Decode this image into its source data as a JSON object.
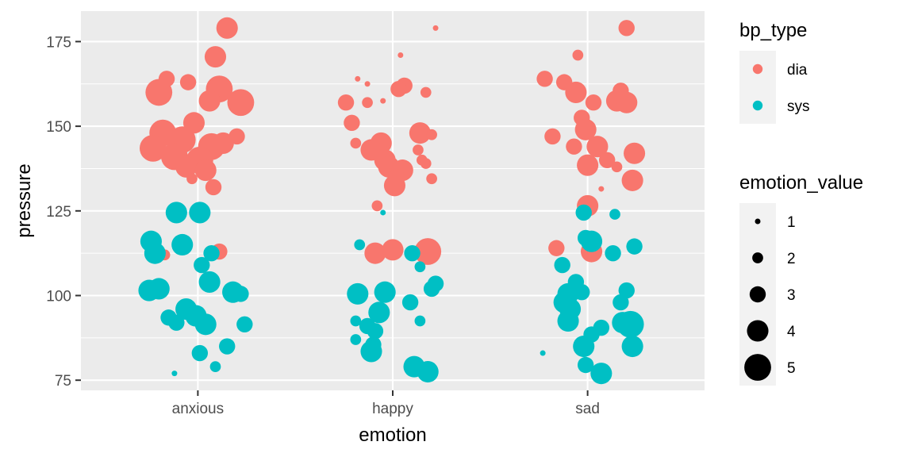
{
  "chart_data": {
    "type": "scatter",
    "subtype": "jitter-bubble",
    "title": "",
    "xlabel": "emotion",
    "ylabel": "pressure",
    "categories": [
      "anxious",
      "happy",
      "sad"
    ],
    "ylim": [
      72,
      184
    ],
    "yticks": [
      75,
      100,
      125,
      150,
      175
    ],
    "grid": true,
    "legend_placement": "right",
    "color_legend": {
      "title": "bp_type",
      "entries": [
        {
          "label": "dia",
          "color": "#F8766D"
        },
        {
          "label": "sys",
          "color": "#00BFC4"
        }
      ]
    },
    "size_legend": {
      "title": "emotion_value",
      "entries": [
        {
          "label": "1",
          "value": 1
        },
        {
          "label": "2",
          "value": 2
        },
        {
          "label": "3",
          "value": 3
        },
        {
          "label": "4",
          "value": 4
        },
        {
          "label": "5",
          "value": 5
        }
      ]
    },
    "series": [
      {
        "name": "dia",
        "color": "#F8766D",
        "points": [
          {
            "x": "anxious",
            "jitter": 0.15,
            "y": 179,
            "size": 4
          },
          {
            "x": "anxious",
            "jitter": 0.09,
            "y": 170.5,
            "size": 4
          },
          {
            "x": "anxious",
            "jitter": -0.16,
            "y": 164,
            "size": 3
          },
          {
            "x": "anxious",
            "jitter": -0.05,
            "y": 163,
            "size": 3
          },
          {
            "x": "anxious",
            "jitter": -0.2,
            "y": 160,
            "size": 5
          },
          {
            "x": "anxious",
            "jitter": 0.11,
            "y": 161,
            "size": 5
          },
          {
            "x": "anxious",
            "jitter": 0.06,
            "y": 157.5,
            "size": 4
          },
          {
            "x": "anxious",
            "jitter": 0.22,
            "y": 157,
            "size": 5
          },
          {
            "x": "anxious",
            "jitter": -0.02,
            "y": 151,
            "size": 4
          },
          {
            "x": "anxious",
            "jitter": -0.18,
            "y": 148,
            "size": 5
          },
          {
            "x": "anxious",
            "jitter": 0.2,
            "y": 147,
            "size": 3
          },
          {
            "x": "anxious",
            "jitter": -0.23,
            "y": 143.5,
            "size": 5
          },
          {
            "x": "anxious",
            "jitter": -0.08,
            "y": 146,
            "size": 5
          },
          {
            "x": "anxious",
            "jitter": 0.07,
            "y": 144,
            "size": 5
          },
          {
            "x": "anxious",
            "jitter": 0.13,
            "y": 145,
            "size": 4
          },
          {
            "x": "anxious",
            "jitter": -0.12,
            "y": 141,
            "size": 5
          },
          {
            "x": "anxious",
            "jitter": 0.01,
            "y": 140,
            "size": 5
          },
          {
            "x": "anxious",
            "jitter": -0.06,
            "y": 138,
            "size": 4
          },
          {
            "x": "anxious",
            "jitter": 0.04,
            "y": 137,
            "size": 4
          },
          {
            "x": "anxious",
            "jitter": -0.03,
            "y": 134.5,
            "size": 2
          },
          {
            "x": "anxious",
            "jitter": 0.08,
            "y": 132,
            "size": 3
          },
          {
            "x": "anxious",
            "jitter": -0.09,
            "y": 126,
            "size": 1
          },
          {
            "x": "anxious",
            "jitter": -0.17,
            "y": 112,
            "size": 2
          },
          {
            "x": "anxious",
            "jitter": 0.11,
            "y": 113,
            "size": 3
          },
          {
            "x": "happy",
            "jitter": -0.18,
            "y": 164,
            "size": 1
          },
          {
            "x": "happy",
            "jitter": -0.13,
            "y": 162.5,
            "size": 1
          },
          {
            "x": "happy",
            "jitter": 0.04,
            "y": 171,
            "size": 1
          },
          {
            "x": "happy",
            "jitter": 0.22,
            "y": 179,
            "size": 1
          },
          {
            "x": "happy",
            "jitter": 0.06,
            "y": 162,
            "size": 3
          },
          {
            "x": "happy",
            "jitter": 0.03,
            "y": 161,
            "size": 3
          },
          {
            "x": "happy",
            "jitter": 0.17,
            "y": 160,
            "size": 2
          },
          {
            "x": "happy",
            "jitter": -0.24,
            "y": 157,
            "size": 3
          },
          {
            "x": "happy",
            "jitter": -0.13,
            "y": 157,
            "size": 2
          },
          {
            "x": "happy",
            "jitter": -0.05,
            "y": 157.5,
            "size": 1
          },
          {
            "x": "happy",
            "jitter": -0.21,
            "y": 151,
            "size": 3
          },
          {
            "x": "happy",
            "jitter": 0.14,
            "y": 148,
            "size": 4
          },
          {
            "x": "happy",
            "jitter": 0.2,
            "y": 147.5,
            "size": 2
          },
          {
            "x": "happy",
            "jitter": -0.19,
            "y": 145,
            "size": 2
          },
          {
            "x": "happy",
            "jitter": -0.06,
            "y": 145,
            "size": 4
          },
          {
            "x": "happy",
            "jitter": -0.11,
            "y": 143,
            "size": 4
          },
          {
            "x": "happy",
            "jitter": 0.13,
            "y": 143,
            "size": 2
          },
          {
            "x": "happy",
            "jitter": 0.15,
            "y": 140,
            "size": 2
          },
          {
            "x": "happy",
            "jitter": -0.04,
            "y": 140,
            "size": 4
          },
          {
            "x": "happy",
            "jitter": -0.02,
            "y": 138,
            "size": 4
          },
          {
            "x": "happy",
            "jitter": 0.05,
            "y": 137,
            "size": 4
          },
          {
            "x": "happy",
            "jitter": 0.02,
            "y": 135,
            "size": 3
          },
          {
            "x": "happy",
            "jitter": 0.17,
            "y": 139,
            "size": 2
          },
          {
            "x": "happy",
            "jitter": 0.2,
            "y": 134.5,
            "size": 2
          },
          {
            "x": "happy",
            "jitter": 0.01,
            "y": 132.5,
            "size": 4
          },
          {
            "x": "happy",
            "jitter": -0.08,
            "y": 126.5,
            "size": 2
          },
          {
            "x": "happy",
            "jitter": -0.09,
            "y": 112.5,
            "size": 4
          },
          {
            "x": "happy",
            "jitter": 0.0,
            "y": 113.5,
            "size": 4
          },
          {
            "x": "happy",
            "jitter": 0.18,
            "y": 113,
            "size": 5
          },
          {
            "x": "sad",
            "jitter": -0.22,
            "y": 164,
            "size": 3
          },
          {
            "x": "sad",
            "jitter": -0.12,
            "y": 163,
            "size": 3
          },
          {
            "x": "sad",
            "jitter": -0.06,
            "y": 160,
            "size": 4
          },
          {
            "x": "sad",
            "jitter": -0.05,
            "y": 171,
            "size": 2
          },
          {
            "x": "sad",
            "jitter": 0.2,
            "y": 179,
            "size": 3
          },
          {
            "x": "sad",
            "jitter": 0.17,
            "y": 160.5,
            "size": 3
          },
          {
            "x": "sad",
            "jitter": 0.15,
            "y": 157.5,
            "size": 4
          },
          {
            "x": "sad",
            "jitter": 0.2,
            "y": 157,
            "size": 4
          },
          {
            "x": "sad",
            "jitter": 0.03,
            "y": 157,
            "size": 3
          },
          {
            "x": "sad",
            "jitter": -0.03,
            "y": 152.5,
            "size": 3
          },
          {
            "x": "sad",
            "jitter": -0.01,
            "y": 149,
            "size": 4
          },
          {
            "x": "sad",
            "jitter": -0.18,
            "y": 147,
            "size": 3
          },
          {
            "x": "sad",
            "jitter": 0.05,
            "y": 144,
            "size": 4
          },
          {
            "x": "sad",
            "jitter": -0.07,
            "y": 144,
            "size": 3
          },
          {
            "x": "sad",
            "jitter": 0.24,
            "y": 142,
            "size": 4
          },
          {
            "x": "sad",
            "jitter": 0.1,
            "y": 140,
            "size": 3
          },
          {
            "x": "sad",
            "jitter": 0.0,
            "y": 138.5,
            "size": 4
          },
          {
            "x": "sad",
            "jitter": 0.15,
            "y": 138,
            "size": 2
          },
          {
            "x": "sad",
            "jitter": 0.23,
            "y": 134,
            "size": 4
          },
          {
            "x": "sad",
            "jitter": 0.07,
            "y": 131.5,
            "size": 1
          },
          {
            "x": "sad",
            "jitter": 0.0,
            "y": 126.5,
            "size": 4
          },
          {
            "x": "sad",
            "jitter": -0.16,
            "y": 114,
            "size": 3
          },
          {
            "x": "sad",
            "jitter": 0.02,
            "y": 113,
            "size": 4
          }
        ]
      },
      {
        "name": "sys",
        "color": "#00BFC4",
        "points": [
          {
            "x": "anxious",
            "jitter": -0.11,
            "y": 124.5,
            "size": 4
          },
          {
            "x": "anxious",
            "jitter": 0.01,
            "y": 124.5,
            "size": 4
          },
          {
            "x": "anxious",
            "jitter": -0.24,
            "y": 116,
            "size": 4
          },
          {
            "x": "anxious",
            "jitter": -0.08,
            "y": 115,
            "size": 4
          },
          {
            "x": "anxious",
            "jitter": -0.22,
            "y": 112.5,
            "size": 4
          },
          {
            "x": "anxious",
            "jitter": 0.07,
            "y": 112.5,
            "size": 3
          },
          {
            "x": "anxious",
            "jitter": 0.02,
            "y": 109,
            "size": 3
          },
          {
            "x": "anxious",
            "jitter": 0.06,
            "y": 104,
            "size": 4
          },
          {
            "x": "anxious",
            "jitter": -0.2,
            "y": 102,
            "size": 4
          },
          {
            "x": "anxious",
            "jitter": -0.25,
            "y": 101.5,
            "size": 4
          },
          {
            "x": "anxious",
            "jitter": 0.18,
            "y": 101,
            "size": 4
          },
          {
            "x": "anxious",
            "jitter": 0.22,
            "y": 100.5,
            "size": 3
          },
          {
            "x": "anxious",
            "jitter": -0.06,
            "y": 96,
            "size": 4
          },
          {
            "x": "anxious",
            "jitter": -0.01,
            "y": 94,
            "size": 4
          },
          {
            "x": "anxious",
            "jitter": -0.15,
            "y": 93.5,
            "size": 3
          },
          {
            "x": "anxious",
            "jitter": -0.11,
            "y": 92,
            "size": 3
          },
          {
            "x": "anxious",
            "jitter": 0.04,
            "y": 91.5,
            "size": 4
          },
          {
            "x": "anxious",
            "jitter": 0.24,
            "y": 91.5,
            "size": 3
          },
          {
            "x": "anxious",
            "jitter": 0.01,
            "y": 83,
            "size": 3
          },
          {
            "x": "anxious",
            "jitter": 0.15,
            "y": 85,
            "size": 3
          },
          {
            "x": "anxious",
            "jitter": 0.09,
            "y": 79,
            "size": 2
          },
          {
            "x": "anxious",
            "jitter": -0.12,
            "y": 77,
            "size": 1
          },
          {
            "x": "happy",
            "jitter": -0.17,
            "y": 115,
            "size": 2
          },
          {
            "x": "happy",
            "jitter": 0.1,
            "y": 112.5,
            "size": 3
          },
          {
            "x": "happy",
            "jitter": 0.14,
            "y": 108.5,
            "size": 2
          },
          {
            "x": "happy",
            "jitter": -0.05,
            "y": 124.5,
            "size": 1
          },
          {
            "x": "happy",
            "jitter": 0.22,
            "y": 103.5,
            "size": 3
          },
          {
            "x": "happy",
            "jitter": 0.2,
            "y": 102,
            "size": 3
          },
          {
            "x": "happy",
            "jitter": -0.18,
            "y": 100.5,
            "size": 4
          },
          {
            "x": "happy",
            "jitter": -0.04,
            "y": 101,
            "size": 4
          },
          {
            "x": "happy",
            "jitter": 0.09,
            "y": 98,
            "size": 3
          },
          {
            "x": "happy",
            "jitter": -0.07,
            "y": 95,
            "size": 4
          },
          {
            "x": "happy",
            "jitter": -0.19,
            "y": 92.5,
            "size": 2
          },
          {
            "x": "happy",
            "jitter": -0.13,
            "y": 91,
            "size": 3
          },
          {
            "x": "happy",
            "jitter": -0.09,
            "y": 89.5,
            "size": 3
          },
          {
            "x": "happy",
            "jitter": 0.14,
            "y": 92.5,
            "size": 2
          },
          {
            "x": "happy",
            "jitter": -0.19,
            "y": 87,
            "size": 2
          },
          {
            "x": "happy",
            "jitter": -0.1,
            "y": 85.5,
            "size": 3
          },
          {
            "x": "happy",
            "jitter": -0.11,
            "y": 83.5,
            "size": 4
          },
          {
            "x": "happy",
            "jitter": 0.11,
            "y": 79,
            "size": 4
          },
          {
            "x": "happy",
            "jitter": 0.18,
            "y": 77.5,
            "size": 4
          },
          {
            "x": "sad",
            "jitter": -0.02,
            "y": 124.5,
            "size": 3
          },
          {
            "x": "sad",
            "jitter": 0.14,
            "y": 124,
            "size": 2
          },
          {
            "x": "sad",
            "jitter": -0.01,
            "y": 117,
            "size": 3
          },
          {
            "x": "sad",
            "jitter": 0.02,
            "y": 116,
            "size": 4
          },
          {
            "x": "sad",
            "jitter": 0.24,
            "y": 114.5,
            "size": 3
          },
          {
            "x": "sad",
            "jitter": 0.13,
            "y": 112.5,
            "size": 3
          },
          {
            "x": "sad",
            "jitter": -0.13,
            "y": 109,
            "size": 3
          },
          {
            "x": "sad",
            "jitter": -0.06,
            "y": 104,
            "size": 3
          },
          {
            "x": "sad",
            "jitter": -0.1,
            "y": 100.5,
            "size": 4
          },
          {
            "x": "sad",
            "jitter": -0.03,
            "y": 101,
            "size": 3
          },
          {
            "x": "sad",
            "jitter": 0.2,
            "y": 101.5,
            "size": 3
          },
          {
            "x": "sad",
            "jitter": -0.12,
            "y": 98,
            "size": 4
          },
          {
            "x": "sad",
            "jitter": 0.17,
            "y": 98,
            "size": 3
          },
          {
            "x": "sad",
            "jitter": -0.09,
            "y": 96,
            "size": 4
          },
          {
            "x": "sad",
            "jitter": -0.1,
            "y": 92.5,
            "size": 4
          },
          {
            "x": "sad",
            "jitter": 0.18,
            "y": 92,
            "size": 4
          },
          {
            "x": "sad",
            "jitter": 0.22,
            "y": 91.5,
            "size": 5
          },
          {
            "x": "sad",
            "jitter": 0.07,
            "y": 90.5,
            "size": 3
          },
          {
            "x": "sad",
            "jitter": 0.02,
            "y": 88.5,
            "size": 3
          },
          {
            "x": "sad",
            "jitter": -0.02,
            "y": 85,
            "size": 4
          },
          {
            "x": "sad",
            "jitter": 0.23,
            "y": 85,
            "size": 4
          },
          {
            "x": "sad",
            "jitter": -0.23,
            "y": 83,
            "size": 1
          },
          {
            "x": "sad",
            "jitter": -0.01,
            "y": 79.5,
            "size": 3
          },
          {
            "x": "sad",
            "jitter": 0.07,
            "y": 77,
            "size": 4
          }
        ]
      }
    ]
  }
}
